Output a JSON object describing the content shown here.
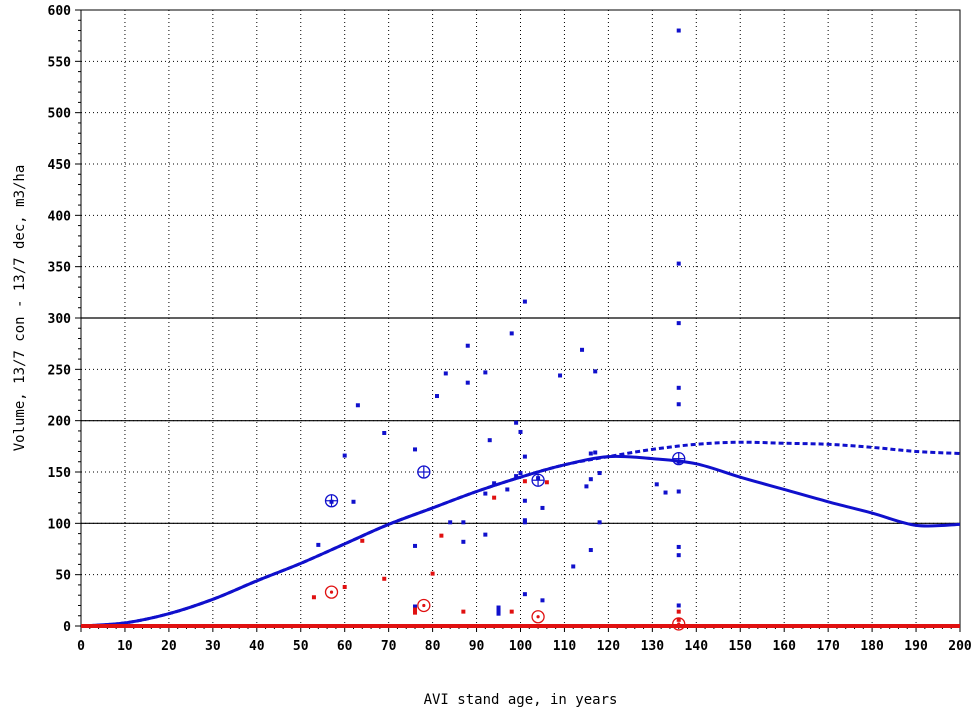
{
  "chart_data": {
    "type": "scatter",
    "title": "",
    "xlabel": "AVI stand age, in years",
    "ylabel": "Volume, 13/7 con - 13/7 dec, m3/ha",
    "xlim": [
      0,
      200
    ],
    "ylim": [
      0,
      600
    ],
    "x_ticks": [
      0,
      10,
      20,
      30,
      40,
      50,
      60,
      70,
      80,
      90,
      100,
      110,
      120,
      130,
      140,
      150,
      160,
      170,
      180,
      190,
      200
    ],
    "y_ticks": [
      0,
      50,
      100,
      150,
      200,
      250,
      300,
      350,
      400,
      450,
      500,
      550,
      600
    ],
    "grid": "dotted",
    "reference_lines_y": [
      100,
      200,
      300
    ],
    "colors": {
      "blue": "#1010cc",
      "red": "#e01010",
      "grid": "#000000"
    },
    "series": [
      {
        "color": "blue",
        "marker": "square",
        "points": [
          [
            54,
            79
          ],
          [
            57,
            121
          ],
          [
            60,
            166
          ],
          [
            62,
            121
          ],
          [
            63,
            215
          ],
          [
            69,
            188
          ],
          [
            76,
            172
          ],
          [
            76,
            78
          ],
          [
            76,
            19
          ],
          [
            81,
            224
          ],
          [
            83,
            246
          ],
          [
            84,
            101
          ],
          [
            87,
            82
          ],
          [
            87,
            101
          ],
          [
            88,
            273
          ],
          [
            88,
            237
          ],
          [
            92,
            247
          ],
          [
            93,
            181
          ],
          [
            92,
            129
          ],
          [
            92,
            89
          ],
          [
            94,
            139
          ],
          [
            95,
            18
          ],
          [
            95,
            15
          ],
          [
            95,
            12
          ],
          [
            97,
            133
          ],
          [
            98,
            285
          ],
          [
            99,
            198
          ],
          [
            99,
            146
          ],
          [
            100,
            189
          ],
          [
            100,
            149
          ],
          [
            101,
            165
          ],
          [
            101,
            122
          ],
          [
            101,
            103
          ],
          [
            101,
            101
          ],
          [
            101,
            31
          ],
          [
            101,
            316
          ],
          [
            104,
            144
          ],
          [
            105,
            115
          ],
          [
            105,
            25
          ],
          [
            109,
            244
          ],
          [
            112,
            58
          ],
          [
            114,
            269
          ],
          [
            115,
            136
          ],
          [
            116,
            143
          ],
          [
            116,
            168
          ],
          [
            116,
            74
          ],
          [
            117,
            169
          ],
          [
            118,
            101
          ],
          [
            118,
            149
          ],
          [
            117,
            248
          ],
          [
            131,
            138
          ],
          [
            133,
            130
          ],
          [
            136,
            580
          ],
          [
            136,
            353
          ],
          [
            136,
            295
          ],
          [
            136,
            232
          ],
          [
            136,
            216
          ],
          [
            136,
            160
          ],
          [
            136,
            131
          ],
          [
            136,
            77
          ],
          [
            136,
            69
          ],
          [
            136,
            20
          ]
        ]
      },
      {
        "color": "red",
        "marker": "square",
        "points": [
          [
            53,
            28
          ],
          [
            60,
            38
          ],
          [
            64,
            83
          ],
          [
            69,
            46
          ],
          [
            76,
            16
          ],
          [
            76,
            13
          ],
          [
            80,
            51
          ],
          [
            82,
            88
          ],
          [
            87,
            14
          ],
          [
            94,
            125
          ],
          [
            98,
            14
          ],
          [
            101,
            141
          ],
          [
            106,
            140
          ],
          [
            136,
            14
          ],
          [
            136,
            6
          ]
        ]
      },
      {
        "color": "blue",
        "marker": "circle-plus",
        "points": [
          [
            57,
            122
          ],
          [
            78,
            150
          ],
          [
            104,
            142
          ],
          [
            136,
            163
          ]
        ]
      },
      {
        "color": "red",
        "marker": "circle-dot",
        "points": [
          [
            57,
            33
          ],
          [
            78,
            20
          ],
          [
            104,
            9
          ],
          [
            136,
            2
          ]
        ]
      },
      {
        "color": "blue",
        "style": "solid",
        "type": "line",
        "x": [
          0,
          10,
          20,
          30,
          40,
          50,
          60,
          70,
          80,
          90,
          100,
          110,
          120,
          130,
          140,
          150,
          160,
          170,
          180,
          190,
          200
        ],
        "y": [
          0,
          3,
          12,
          26,
          44,
          61,
          80,
          99,
          115,
          131,
          145,
          157,
          165,
          163,
          158,
          145,
          133,
          121,
          110,
          98,
          99
        ]
      },
      {
        "color": "blue",
        "style": "dashed",
        "type": "line",
        "x": [
          0,
          10,
          20,
          30,
          40,
          50,
          60,
          70,
          80,
          90,
          100,
          110,
          120,
          130,
          140,
          150,
          160,
          170,
          180,
          190,
          200
        ],
        "y": [
          0,
          3,
          12,
          26,
          44,
          61,
          80,
          99,
          115,
          131,
          145,
          157,
          165,
          172,
          177,
          179,
          178,
          177,
          174,
          170,
          168
        ]
      },
      {
        "color": "red",
        "style": "solid",
        "type": "line",
        "x": [
          0,
          200
        ],
        "y": [
          0,
          0
        ]
      }
    ]
  }
}
